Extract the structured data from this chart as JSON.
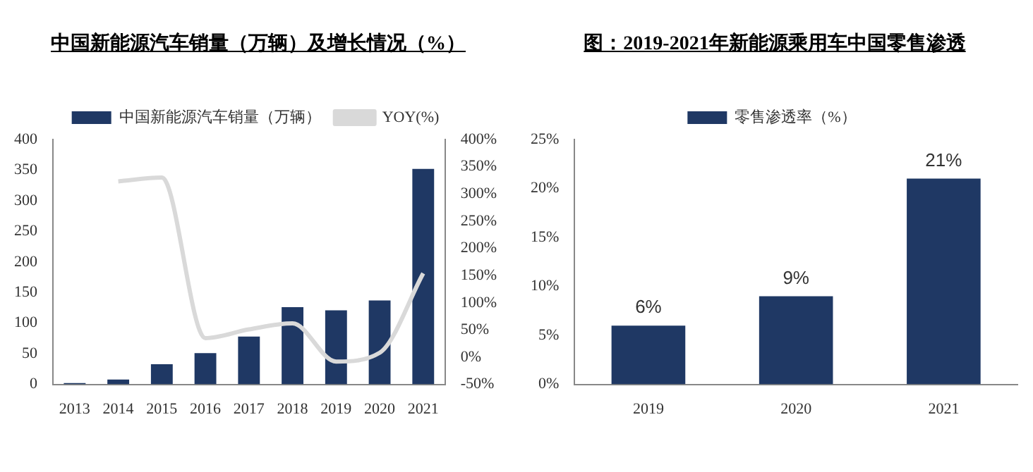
{
  "chart_data": [
    {
      "type": "bar",
      "title": "中国新能源汽车销量（万辆）及增长情况（%）",
      "categories": [
        "2013",
        "2014",
        "2015",
        "2016",
        "2017",
        "2018",
        "2019",
        "2020",
        "2021"
      ],
      "series": [
        {
          "name": "中国新能源汽车销量（万辆）",
          "color": "#1f3864",
          "values": [
            2,
            8,
            33,
            51,
            78,
            126,
            121,
            137,
            352
          ]
        },
        {
          "name": "YOY(%)",
          "type": "line",
          "axis": "y2",
          "color": "#d9d9d9",
          "values": [
            null,
            323,
            330,
            35,
            51,
            62,
            -8,
            8,
            154
          ]
        }
      ],
      "ylim": [
        0,
        400
      ],
      "yticks": [
        0,
        50,
        100,
        150,
        200,
        250,
        300,
        350,
        400
      ],
      "y2lim": [
        -50,
        400
      ],
      "y2ticks": [
        {
          "value": -50,
          "label": "-50%"
        },
        {
          "value": 0,
          "label": "0%"
        },
        {
          "value": 50,
          "label": "50%"
        },
        {
          "value": 100,
          "label": "100%"
        },
        {
          "value": 150,
          "label": "150%"
        },
        {
          "value": 200,
          "label": "200%"
        },
        {
          "value": 250,
          "label": "250%"
        },
        {
          "value": 300,
          "label": "300%"
        },
        {
          "value": 350,
          "label": "350%"
        },
        {
          "value": 400,
          "label": "400%"
        }
      ],
      "legend": "top",
      "marker": "none"
    },
    {
      "type": "bar",
      "title": "图：2019-2021年新能源乘用车中国零售渗透",
      "categories": [
        "2019",
        "2020",
        "2021"
      ],
      "series": [
        {
          "name": "零售渗透率（%）",
          "color": "#1f3864",
          "values": [
            6,
            9,
            21
          ],
          "value_labels": [
            "6%",
            "9%",
            "21%"
          ]
        }
      ],
      "ylim": [
        0,
        25
      ],
      "yticks": [
        {
          "value": 0,
          "label": "0%"
        },
        {
          "value": 5,
          "label": "5%"
        },
        {
          "value": 10,
          "label": "10%"
        },
        {
          "value": 15,
          "label": "15%"
        },
        {
          "value": 20,
          "label": "20%"
        },
        {
          "value": 25,
          "label": "25%"
        }
      ],
      "legend": "top"
    }
  ]
}
